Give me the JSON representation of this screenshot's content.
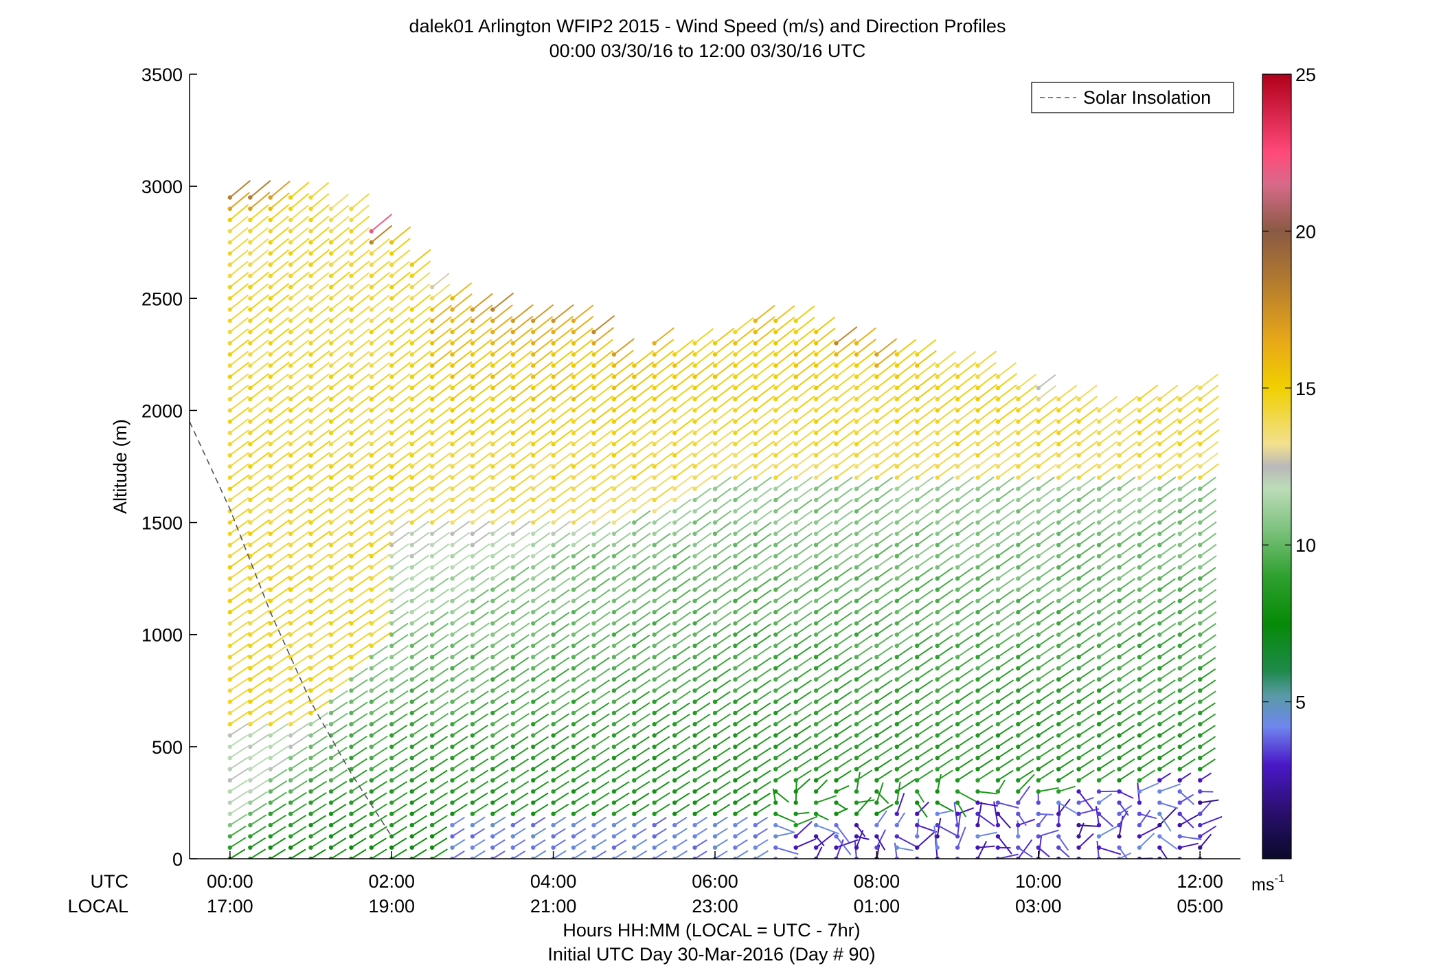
{
  "title": {
    "line1": "dalek01 Arlington WFIP2 2015 - Wind Speed (m/s) and Direction Profiles",
    "line2": "00:00 03/30/16 to 12:00 03/30/16  UTC"
  },
  "axes": {
    "ylabel": "Altitude (m)",
    "xlabel": "Hours HH:MM  (LOCAL = UTC - 7hr)",
    "xlabel2": "Initial UTC Day 30-Mar-2016 (Day # 90)",
    "utc_row_label": "UTC",
    "local_row_label": "LOCAL",
    "yticks": [
      "0",
      "500",
      "1000",
      "1500",
      "2000",
      "2500",
      "3000",
      "3500"
    ],
    "xticks_utc": [
      "00:00",
      "02:00",
      "04:00",
      "06:00",
      "08:00",
      "10:00",
      "12:00"
    ],
    "xticks_local": [
      "17:00",
      "19:00",
      "21:00",
      "23:00",
      "01:00",
      "03:00",
      "05:00"
    ]
  },
  "legend": {
    "label": "Solar Insolation"
  },
  "colorbar": {
    "ticks": [
      "5",
      "10",
      "15",
      "20",
      "25"
    ],
    "unit_main": "ms",
    "unit_exp": "-1"
  },
  "chart_data": {
    "type": "scatter",
    "description_kind": "wind barb profiles",
    "x_unit": "hours UTC",
    "y_unit": "m",
    "xlim": [
      -0.5,
      12.5
    ],
    "ylim": [
      0,
      3500
    ],
    "clim": [
      0,
      25
    ],
    "grid": false,
    "legend_position": "top-right",
    "profile_times": [
      0,
      0.25,
      0.5,
      0.75,
      1,
      1.25,
      1.5,
      1.75,
      2,
      2.25,
      2.5,
      2.75,
      3,
      3.25,
      3.5,
      3.75,
      4,
      4.25,
      4.5,
      4.75,
      5,
      5.25,
      5.5,
      5.75,
      6,
      6.25,
      6.5,
      6.75,
      7,
      7.25,
      7.5,
      7.75,
      8,
      8.25,
      8.5,
      8.75,
      9,
      9.25,
      9.5,
      9.75,
      10,
      10.25,
      10.5,
      10.75,
      11,
      11.25,
      11.5,
      11.75,
      12
    ],
    "range_gate_spacing_m": 50,
    "profile_top_altitude_m": [
      2950,
      2970,
      2970,
      2990,
      2990,
      2900,
      2900,
      2830,
      2770,
      2690,
      2560,
      2540,
      2480,
      2450,
      2430,
      2400,
      2400,
      2400,
      2380,
      2280,
      2240,
      2300,
      2280,
      2300,
      2300,
      2350,
      2400,
      2440,
      2420,
      2370,
      2320,
      2320,
      2280,
      2290,
      2260,
      2230,
      2220,
      2200,
      2170,
      2130,
      2110,
      2090,
      2060,
      2030,
      2000,
      2080,
      2080,
      2090,
      2110
    ],
    "speed_regimes_m_s": {
      "upper_layer_evening": 14.5,
      "mid_layer": 10.5,
      "lower_layer": 7.5,
      "surface_night": 3
    },
    "profile_top_speed_m_s": [
      18,
      19.5,
      17,
      16,
      15,
      14,
      14,
      25,
      16,
      15,
      12,
      16,
      18,
      18,
      18,
      17,
      17,
      17,
      18,
      17,
      16,
      16,
      15,
      15,
      15,
      15,
      16,
      16,
      15,
      15,
      18,
      16,
      18,
      15,
      15,
      14,
      14,
      14,
      14,
      13,
      12,
      13,
      14,
      14,
      14,
      14,
      14,
      14,
      14
    ],
    "solar_insolation_curve": {
      "x": [
        -0.5,
        0,
        0.5,
        1,
        1.5,
        2
      ],
      "y": [
        1950,
        1560,
        1100,
        700,
        380,
        100
      ]
    },
    "colormap": [
      {
        "v": 0,
        "c": "#0a0a2a"
      },
      {
        "v": 1.5,
        "c": "#2a0f6e"
      },
      {
        "v": 3,
        "c": "#4a18c8"
      },
      {
        "v": 4.2,
        "c": "#6f86ee"
      },
      {
        "v": 5.2,
        "c": "#5a9aa6"
      },
      {
        "v": 6,
        "c": "#1e8a4a"
      },
      {
        "v": 7.5,
        "c": "#078a07"
      },
      {
        "v": 9,
        "c": "#2ea02e"
      },
      {
        "v": 10.5,
        "c": "#7ec27e"
      },
      {
        "v": 11.8,
        "c": "#bcdcb8"
      },
      {
        "v": 12.5,
        "c": "#b8b8b8"
      },
      {
        "v": 13.2,
        "c": "#f2e090"
      },
      {
        "v": 15,
        "c": "#f0d000"
      },
      {
        "v": 16.5,
        "c": "#e8a818"
      },
      {
        "v": 18.5,
        "c": "#b07830"
      },
      {
        "v": 20,
        "c": "#8a5a44"
      },
      {
        "v": 21.5,
        "c": "#d86a8a"
      },
      {
        "v": 22.5,
        "c": "#ff4a7a"
      },
      {
        "v": 25,
        "c": "#b0001a"
      }
    ]
  }
}
